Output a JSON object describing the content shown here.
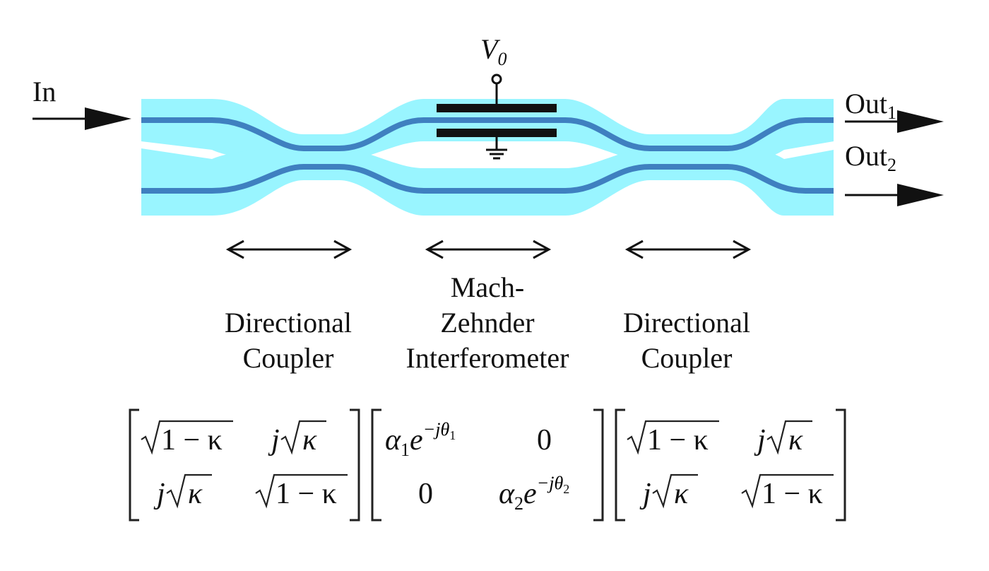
{
  "colors": {
    "cladding": "#99f5ff",
    "core": "#3f80c0",
    "electrode": "#111111",
    "text": "#111111"
  },
  "labels": {
    "input": "In",
    "output1": "Out",
    "output1_sub": "1",
    "output2": "Out",
    "output2_sub": "2",
    "voltage": "V",
    "voltage_sub": "0"
  },
  "sections": {
    "left_coupler": [
      "Directional",
      "Coupler"
    ],
    "mzi": [
      "Mach-",
      "Zehnder",
      "Interferometer"
    ],
    "right_coupler": [
      "Directional",
      "Coupler"
    ]
  },
  "matrices": {
    "coupler": {
      "sqrt_one_minus_kappa": "1 − κ",
      "j": "j",
      "kappa": "κ"
    },
    "phase": {
      "alpha": "α",
      "alpha1_sub": "1",
      "alpha2_sub": "2",
      "e": "e",
      "exp1": "−jθ",
      "exp1_sub": "1",
      "exp2": "−jθ",
      "exp2_sub": "2",
      "zero": "0"
    }
  },
  "icons": [
    "ground-icon",
    "terminal-icon",
    "double-arrow-icon",
    "right-arrow-icon"
  ]
}
